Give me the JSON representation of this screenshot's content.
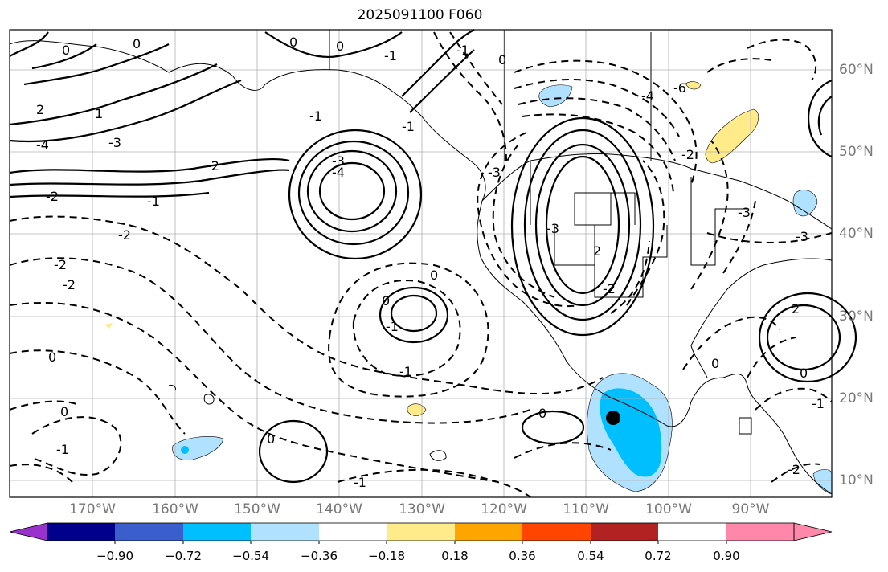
{
  "title": "2025091100 F060",
  "lon_labels": [
    "170°W",
    "160°W",
    "150°W",
    "140°W",
    "130°W",
    "120°W",
    "110°W",
    "100°W",
    "90°W"
  ],
  "lat_labels": [
    "60°N",
    "50°N",
    "40°N",
    "30°N",
    "20°N",
    "10°N"
  ],
  "colorbar": {
    "ticks": [
      "−0.90",
      "−0.72",
      "−0.54",
      "−0.36",
      "−0.18",
      "0.18",
      "0.36",
      "0.54",
      "0.72",
      "0.90"
    ],
    "colors": [
      "#9932cc",
      "#00008b",
      "#3a5fcd",
      "#00bfff",
      "#b0e2ff",
      "#ffffff",
      "#ffeb8a",
      "#ffa500",
      "#ff4500",
      "#b22222",
      "#ff88aa"
    ]
  },
  "contour_labels": [
    "0",
    "0",
    "-1",
    "-2",
    "2",
    "1",
    "-2",
    "-3",
    "-4",
    "-4",
    "-3",
    "-6",
    "-2",
    "-3",
    "-4",
    "-3",
    "2",
    "-1",
    "-2",
    "-2",
    "0",
    "-1",
    "-1",
    "0",
    "0",
    "0",
    "-1",
    "-2",
    "-3",
    "-3",
    "-1",
    "2",
    "0",
    "0",
    "0",
    "0",
    "-1",
    "-2",
    "-1",
    "0",
    "-1",
    "0",
    "0",
    "-1",
    "-2"
  ],
  "marker": "storm-center"
}
